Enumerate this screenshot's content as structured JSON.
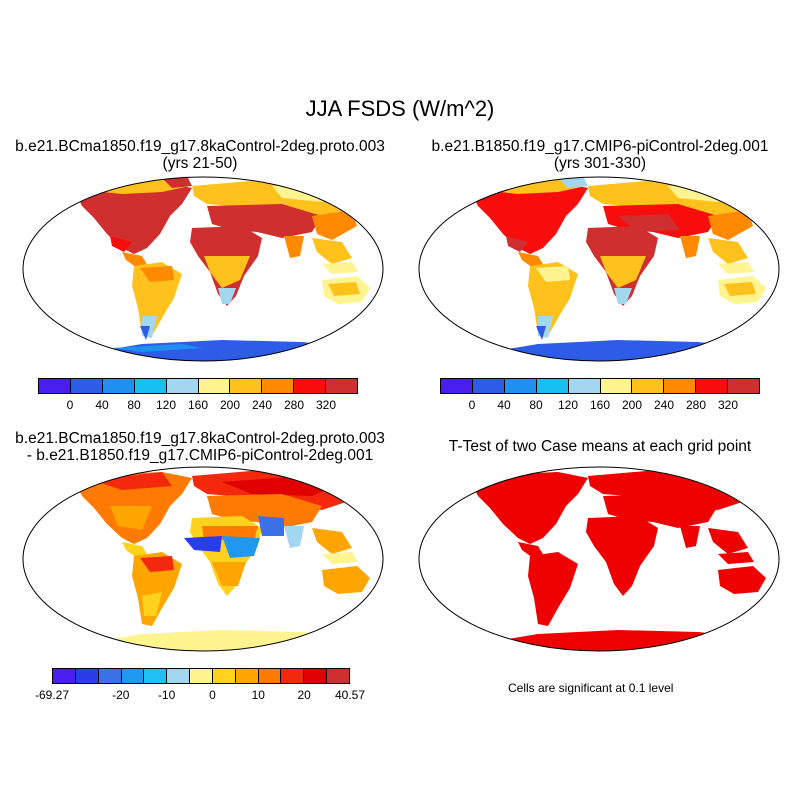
{
  "figure": {
    "title": "JJA FSDS (W/m^2)"
  },
  "panels": {
    "top_left": {
      "title_line1": "b.e21.BCma1850.f19_g17.8kaControl-2deg.proto.003",
      "title_line2": "(yrs 21-50)"
    },
    "top_right": {
      "title_line1": "b.e21.B1850.f19_g17.CMIP6-piControl-2deg.001",
      "title_line2": "(yrs 301-330)"
    },
    "bottom_left": {
      "title_line1": "b.e21.BCma1850.f19_g17.8kaControl-2deg.proto.003",
      "title_line2": "- b.e21.B1850.f19_g17.CMIP6-piControl-2deg.001"
    },
    "bottom_right": {
      "title": "T-Test of two Case means at each grid point",
      "note": "Cells are significant at 0.1 level"
    }
  },
  "colorbars": {
    "absolute": {
      "labels": [
        "0",
        "40",
        "80",
        "120",
        "160",
        "200",
        "240",
        "280",
        "320"
      ],
      "colors": [
        "#4b1ef0",
        "#2d5de6",
        "#1f8ff0",
        "#17bff3",
        "#a3d6ef",
        "#fff48f",
        "#ffc21d",
        "#ff8a00",
        "#f80d0d",
        "#cf2f2f"
      ]
    },
    "difference": {
      "labels": [
        "-69.27",
        "-20",
        "-10",
        "0",
        "10",
        "20",
        "40.57"
      ],
      "colors": [
        "#4b1ef0",
        "#2a3ee8",
        "#3a70e8",
        "#1f98f0",
        "#1fc0f2",
        "#a3d6ef",
        "#fff48f",
        "#ffd21d",
        "#ffa500",
        "#ff7a00",
        "#f4280d",
        "#e00000",
        "#cf2f2f"
      ]
    }
  }
}
